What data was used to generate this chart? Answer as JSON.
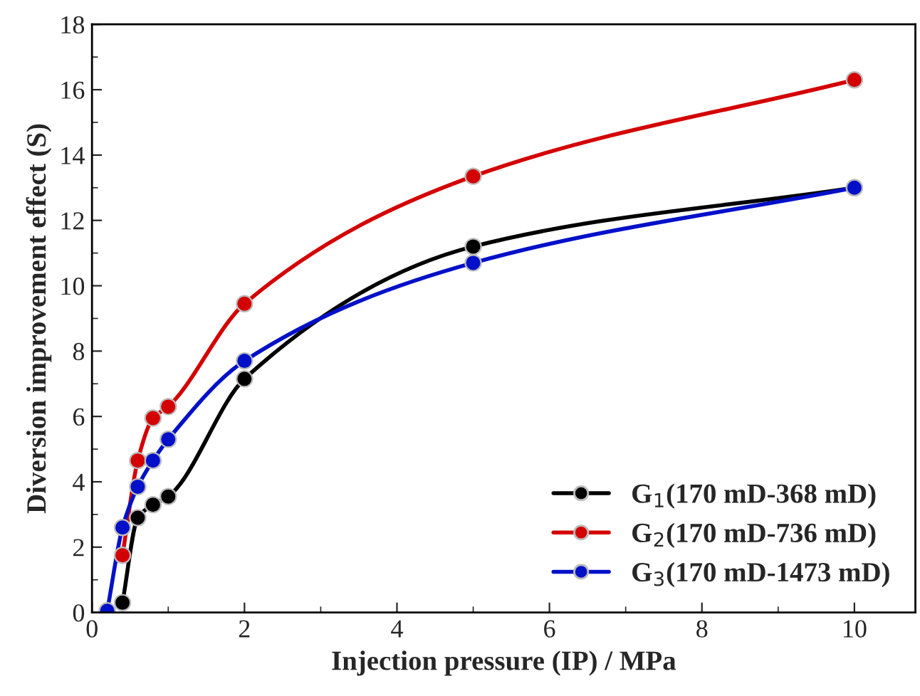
{
  "chart_data": {
    "type": "line",
    "xlabel": "Injection pressure (IP) / MPa",
    "ylabel": "Diversion improvement effect (S)",
    "xlim": [
      0,
      10.8
    ],
    "xticks": [
      0,
      2,
      4,
      6,
      8,
      10
    ],
    "ylim": [
      0,
      18
    ],
    "yticks": [
      0,
      2,
      4,
      6,
      8,
      10,
      12,
      14,
      16,
      18
    ],
    "marker": "circle",
    "line_style": "solid",
    "legend": "bottom right",
    "grid": false,
    "series": [
      {
        "name": "G$_{1}$(170 mD-368 mD)",
        "color": "#000000",
        "x": [
          0.4,
          0.6,
          0.8,
          1,
          2,
          5,
          10
        ],
        "values": [
          0.3,
          2.9,
          3.3,
          3.55,
          7.15,
          11.2,
          13.0
        ]
      },
      {
        "name": "G$_{2}$(170 mD-736 mD)",
        "color": "#d40000",
        "x": [
          0.4,
          0.6,
          0.8,
          1,
          2,
          5,
          10
        ],
        "values": [
          1.75,
          4.65,
          5.95,
          6.3,
          9.45,
          13.35,
          16.3
        ]
      },
      {
        "name": "G$_{3}$(170 mD-1473 mD)",
        "color": "#0010c8",
        "x": [
          0.2,
          0.4,
          0.6,
          0.8,
          1,
          2,
          5,
          10
        ],
        "values": [
          0.05,
          2.6,
          3.85,
          4.65,
          5.3,
          7.7,
          10.7,
          13.0
        ]
      }
    ]
  }
}
